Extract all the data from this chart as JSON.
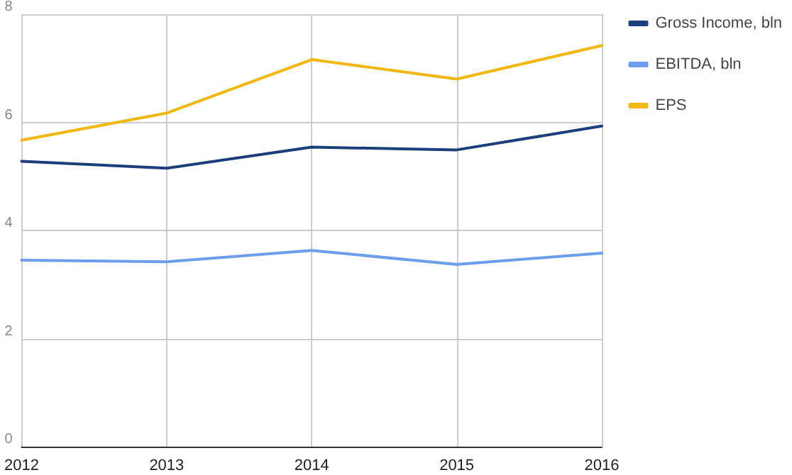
{
  "chart_data": {
    "type": "line",
    "categories": [
      "2012",
      "2013",
      "2014",
      "2015",
      "2016"
    ],
    "series": [
      {
        "name": "Gross Income, bln",
        "color": "#1c3f7c",
        "values": [
          5.28,
          5.15,
          5.54,
          5.49,
          5.93
        ]
      },
      {
        "name": "EBITDA, bln",
        "color": "#6d9eeb",
        "values": [
          3.45,
          3.42,
          3.63,
          3.37,
          3.58
        ]
      },
      {
        "name": "EPS",
        "color": "#f1b814",
        "values": [
          5.67,
          6.17,
          7.16,
          6.8,
          7.42
        ]
      }
    ],
    "ylim": [
      0,
      8
    ],
    "yticks": [
      0,
      2,
      4,
      6,
      8
    ],
    "grid": true,
    "legend": "right",
    "marker": "none",
    "line_style": "solid"
  }
}
